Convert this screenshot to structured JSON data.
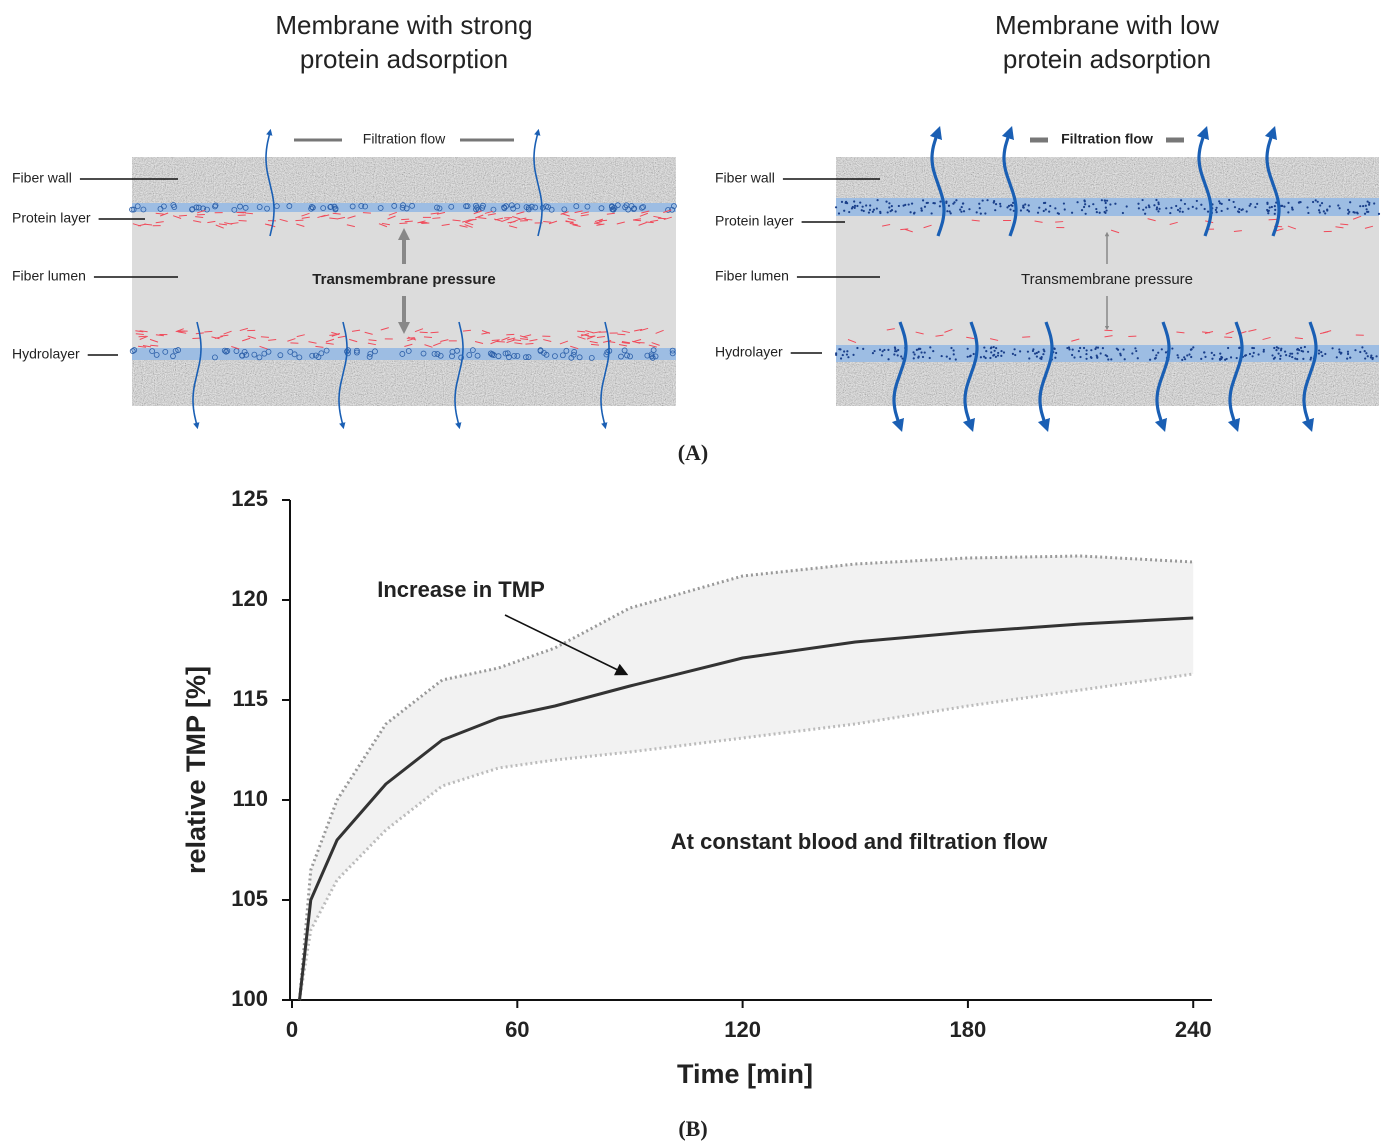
{
  "panel_a": {
    "label": "(A)",
    "diagrams": [
      {
        "title": [
          "Membrane with strong",
          "protein adsorption"
        ],
        "labels": [
          "Fiber wall",
          "Protein layer",
          "Fiber lumen",
          "Hydrolayer"
        ],
        "flow": "Filtration flow",
        "pressure": "Transmembrane pressure"
      },
      {
        "title": [
          "Membrane with low",
          "protein adsorption"
        ],
        "labels": [
          "Fiber wall",
          "Protein layer",
          "Fiber lumen",
          "Hydrolayer"
        ],
        "flow": "Filtration flow",
        "pressure": "Transmembrane pressure"
      }
    ]
  },
  "panel_b_label": "(B)",
  "chart_data": {
    "type": "line",
    "x_label": "Time [min]",
    "y_label": "relative TMP [%]",
    "annotations": [
      "Increase in TMP",
      "At constant blood and filtration flow"
    ],
    "x": [
      2,
      5,
      12,
      25,
      40,
      55,
      70,
      90,
      120,
      150,
      180,
      210,
      240
    ],
    "series": [
      {
        "color": "#333333",
        "style": "solid",
        "values": [
          100,
          105,
          108,
          110.8,
          113,
          114.1,
          114.7,
          115.7,
          117.1,
          117.9,
          118.4,
          118.8,
          119.1
        ]
      },
      {
        "color": "#999999",
        "style": "dotted",
        "values": [
          100,
          106.5,
          110,
          113.8,
          116,
          116.6,
          117.6,
          119.6,
          121.2,
          121.8,
          122.1,
          122.2,
          121.9
        ]
      },
      {
        "color": "#bbbbbb",
        "style": "dotted",
        "values": [
          100,
          103.5,
          106,
          108.5,
          110.7,
          111.6,
          112,
          112.4,
          113.1,
          113.8,
          114.7,
          115.5,
          116.3
        ]
      }
    ],
    "band_color": "#f2f2f2",
    "xlim": [
      0,
      245
    ],
    "xticks": [
      0,
      60,
      120,
      180,
      240
    ],
    "ylim": [
      100,
      125
    ],
    "yticks": [
      100,
      105,
      110,
      115,
      120,
      125
    ]
  }
}
